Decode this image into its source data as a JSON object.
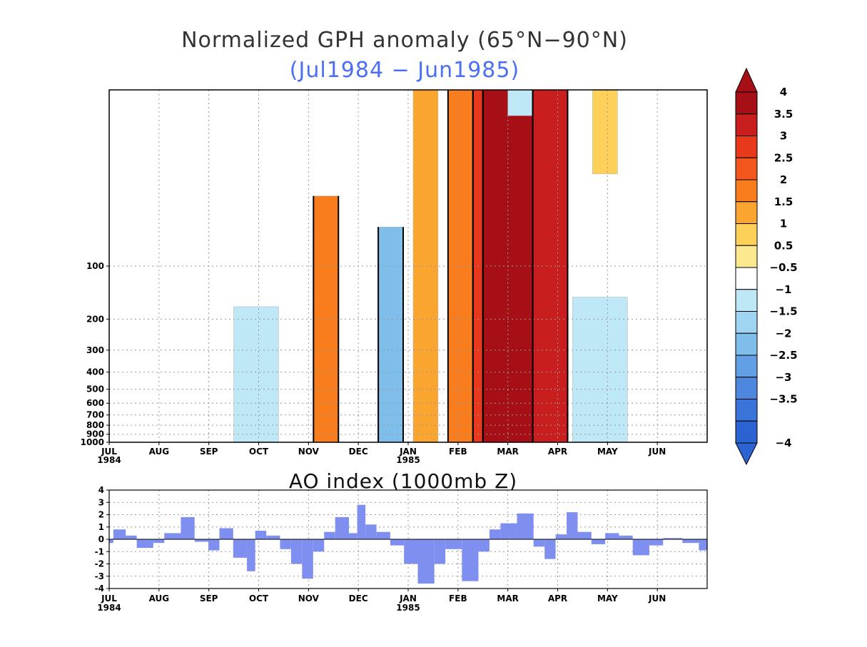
{
  "chart_data": [
    {
      "type": "heatmap",
      "title": "Normalized GPH anomaly (65°N−90°N)",
      "subtitle": "(Jul1984 − Jun1985)",
      "subtitle_color": "#4a6ff0",
      "x_months": [
        "JUL",
        "AUG",
        "SEP",
        "OCT",
        "NOV",
        "DEC",
        "JAN",
        "FEB",
        "MAR",
        "APR",
        "MAY",
        "JUN"
      ],
      "x_years": [
        {
          "month": "JUL",
          "year": "1984"
        },
        {
          "month": "JAN",
          "year": "1985"
        }
      ],
      "y_ticks": [
        100,
        200,
        300,
        400,
        500,
        600,
        700,
        800,
        900,
        1000
      ],
      "y_scale": "log (pressure, hPa)",
      "ylim": [
        10,
        1000
      ],
      "colorbar": {
        "ticks": [
          "4",
          "3.5",
          "3",
          "2.5",
          "2",
          "1.5",
          "1",
          "0.5",
          "−0.5",
          "−1",
          "−1.5",
          "−2",
          "−2.5",
          "−3",
          "−3.5",
          "−4"
        ],
        "colors_high_to_low": [
          "#a50f15",
          "#c81e1e",
          "#e8391d",
          "#f4571e",
          "#f97d1d",
          "#fba531",
          "#fdd05a",
          "#fbe88f",
          "#ffffff",
          "#bfe8f7",
          "#9fd5f2",
          "#7fbdeb",
          "#629fe4",
          "#4d88de",
          "#3a74d8",
          "#2c63d2"
        ],
        "extend": "both"
      },
      "zero_contour": "bold black",
      "grid": true,
      "anomaly_regions": [
        {
          "month_start": 7.5,
          "month_end": 8.5,
          "value": 3.9,
          "top_hpa": 10,
          "bottom_hpa": 1000
        },
        {
          "month_start": 8.5,
          "month_end": 9.2,
          "value": 3.2,
          "top_hpa": 10,
          "bottom_hpa": 1000
        },
        {
          "month_start": 7.3,
          "month_end": 7.5,
          "value": 2.8,
          "top_hpa": 10,
          "bottom_hpa": 1000
        },
        {
          "month_start": 6.8,
          "month_end": 7.3,
          "value": 2.0,
          "top_hpa": 10,
          "bottom_hpa": 1000
        },
        {
          "month_start": 5.4,
          "month_end": 5.9,
          "value": -1.8,
          "top_hpa": 60,
          "bottom_hpa": 1000
        },
        {
          "month_start": 9.3,
          "month_end": 10.4,
          "value": -1.0,
          "top_hpa": 150,
          "bottom_hpa": 1000
        },
        {
          "month_start": 8.0,
          "month_end": 8.5,
          "value": -0.8,
          "top_hpa": 10,
          "bottom_hpa": 14
        },
        {
          "month_start": 2.5,
          "month_end": 3.4,
          "value": -0.7,
          "top_hpa": 170,
          "bottom_hpa": 1000
        },
        {
          "month_start": 4.1,
          "month_end": 4.6,
          "value": 1.6,
          "top_hpa": 40,
          "bottom_hpa": 1000
        },
        {
          "month_start": 6.1,
          "month_end": 6.6,
          "value": 1.2,
          "top_hpa": 10,
          "bottom_hpa": 1000
        },
        {
          "month_start": 9.7,
          "month_end": 10.2,
          "value": 0.8,
          "top_hpa": 10,
          "bottom_hpa": 30
        }
      ]
    },
    {
      "type": "bar",
      "title": "AO index (1000mb Z)",
      "x_months": [
        "JUL",
        "AUG",
        "SEP",
        "OCT",
        "NOV",
        "DEC",
        "JAN",
        "FEB",
        "MAR",
        "APR",
        "MAY",
        "JUN"
      ],
      "x_years": [
        {
          "month": "JUL",
          "year": "1984"
        },
        {
          "month": "JAN",
          "year": "1985"
        }
      ],
      "ylim": [
        -4,
        4
      ],
      "y_ticks": [
        4,
        3,
        2,
        1,
        0,
        -1,
        -2,
        -3,
        -4
      ],
      "grid": true,
      "bar_color": "#7f8ff0",
      "daily_segments": [
        {
          "from_day": 0,
          "to_day": 3,
          "value": -0.3
        },
        {
          "from_day": 3,
          "to_day": 12,
          "value": 0.8
        },
        {
          "from_day": 12,
          "to_day": 20,
          "value": 0.3
        },
        {
          "from_day": 20,
          "to_day": 32,
          "value": -0.7
        },
        {
          "from_day": 32,
          "to_day": 40,
          "value": -0.3
        },
        {
          "from_day": 40,
          "to_day": 52,
          "value": 0.5
        },
        {
          "from_day": 52,
          "to_day": 62,
          "value": 1.8
        },
        {
          "from_day": 62,
          "to_day": 72,
          "value": -0.2
        },
        {
          "from_day": 72,
          "to_day": 80,
          "value": -0.9
        },
        {
          "from_day": 80,
          "to_day": 90,
          "value": 0.9
        },
        {
          "from_day": 90,
          "to_day": 100,
          "value": -1.5
        },
        {
          "from_day": 100,
          "to_day": 106,
          "value": -2.6
        },
        {
          "from_day": 106,
          "to_day": 114,
          "value": 0.7
        },
        {
          "from_day": 114,
          "to_day": 124,
          "value": 0.3
        },
        {
          "from_day": 124,
          "to_day": 132,
          "value": -0.8
        },
        {
          "from_day": 132,
          "to_day": 140,
          "value": -2.0
        },
        {
          "from_day": 140,
          "to_day": 148,
          "value": -3.2
        },
        {
          "from_day": 148,
          "to_day": 156,
          "value": -1.0
        },
        {
          "from_day": 156,
          "to_day": 164,
          "value": 0.6
        },
        {
          "from_day": 164,
          "to_day": 174,
          "value": 1.8
        },
        {
          "from_day": 174,
          "to_day": 180,
          "value": 0.5
        },
        {
          "from_day": 180,
          "to_day": 186,
          "value": 2.8
        },
        {
          "from_day": 186,
          "to_day": 194,
          "value": 1.2
        },
        {
          "from_day": 194,
          "to_day": 204,
          "value": 0.6
        },
        {
          "from_day": 204,
          "to_day": 214,
          "value": -0.5
        },
        {
          "from_day": 214,
          "to_day": 224,
          "value": -2.0
        },
        {
          "from_day": 224,
          "to_day": 236,
          "value": -3.6
        },
        {
          "from_day": 236,
          "to_day": 244,
          "value": -2.0
        },
        {
          "from_day": 244,
          "to_day": 256,
          "value": -0.8
        },
        {
          "from_day": 256,
          "to_day": 268,
          "value": -3.4
        },
        {
          "from_day": 268,
          "to_day": 276,
          "value": -1.0
        },
        {
          "from_day": 276,
          "to_day": 284,
          "value": 0.8
        },
        {
          "from_day": 284,
          "to_day": 296,
          "value": 1.3
        },
        {
          "from_day": 296,
          "to_day": 308,
          "value": 2.1
        },
        {
          "from_day": 308,
          "to_day": 316,
          "value": -0.6
        },
        {
          "from_day": 316,
          "to_day": 324,
          "value": -1.6
        },
        {
          "from_day": 324,
          "to_day": 332,
          "value": 0.4
        },
        {
          "from_day": 332,
          "to_day": 340,
          "value": 2.2
        },
        {
          "from_day": 340,
          "to_day": 350,
          "value": 0.6
        },
        {
          "from_day": 350,
          "to_day": 360,
          "value": -0.4
        },
        {
          "from_day": 360,
          "to_day": 370,
          "value": 0.5
        },
        {
          "from_day": 370,
          "to_day": 380,
          "value": 0.3
        },
        {
          "from_day": 380,
          "to_day": 392,
          "value": -1.3
        },
        {
          "from_day": 392,
          "to_day": 402,
          "value": -0.5
        },
        {
          "from_day": 402,
          "to_day": 416,
          "value": 0.1
        },
        {
          "from_day": 416,
          "to_day": 428,
          "value": -0.3
        },
        {
          "from_day": 428,
          "to_day": 434,
          "value": -0.9
        }
      ]
    }
  ]
}
